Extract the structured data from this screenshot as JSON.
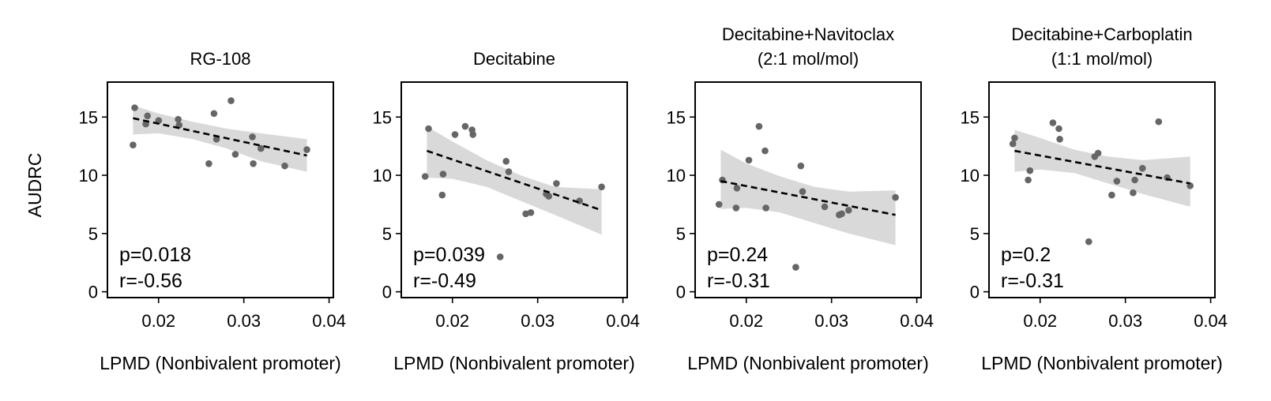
{
  "chart_data": [
    {
      "type": "scatter",
      "title": [
        "RG-108"
      ],
      "xlabel": "LPMD (Nonbivalent promoter)",
      "ylabel": "AUDRC",
      "xlim": [
        0.014,
        0.0405
      ],
      "ylim": [
        -0.5,
        18
      ],
      "xticks": [
        "0.02",
        "0.03",
        "0.04"
      ],
      "yticks": [
        "0",
        "5",
        "10",
        "15"
      ],
      "annotations": [
        "p=0.018",
        "r=-0.56"
      ],
      "points": [
        [
          0.017,
          12.6
        ],
        [
          0.0172,
          15.8
        ],
        [
          0.0185,
          14.4
        ],
        [
          0.0187,
          15.1
        ],
        [
          0.02,
          14.7
        ],
        [
          0.0223,
          14.8
        ],
        [
          0.0224,
          14.3
        ],
        [
          0.0259,
          11.0
        ],
        [
          0.0265,
          15.3
        ],
        [
          0.0268,
          13.1
        ],
        [
          0.0285,
          16.4
        ],
        [
          0.029,
          11.8
        ],
        [
          0.031,
          13.3
        ],
        [
          0.0311,
          11.0
        ],
        [
          0.032,
          12.3
        ],
        [
          0.0348,
          10.8
        ],
        [
          0.0374,
          12.2
        ]
      ],
      "fit": [
        [
          0.017,
          14.9
        ],
        [
          0.0374,
          11.7
        ]
      ],
      "ci_upper": [
        [
          0.017,
          16.0
        ],
        [
          0.02,
          15.3
        ],
        [
          0.024,
          14.6
        ],
        [
          0.028,
          14.0
        ],
        [
          0.032,
          13.6
        ],
        [
          0.0374,
          13.1
        ]
      ],
      "ci_lower": [
        [
          0.017,
          13.5
        ],
        [
          0.02,
          13.6
        ],
        [
          0.024,
          13.1
        ],
        [
          0.028,
          12.3
        ],
        [
          0.032,
          11.2
        ],
        [
          0.0374,
          10.3
        ]
      ],
      "point_color": "#666666",
      "band_color": "#d9d9d9"
    },
    {
      "type": "scatter",
      "title": [
        "Decitabine"
      ],
      "xlabel": "LPMD (Nonbivalent promoter)",
      "ylabel": "",
      "xlim": [
        0.014,
        0.0405
      ],
      "ylim": [
        -0.5,
        18
      ],
      "xticks": [
        "0.02",
        "0.03",
        "0.04"
      ],
      "yticks": [
        "0",
        "5",
        "10",
        "15"
      ],
      "annotations": [
        "p=0.039",
        "r=-0.49"
      ],
      "points": [
        [
          0.0168,
          9.9
        ],
        [
          0.0172,
          14.0
        ],
        [
          0.0188,
          8.3
        ],
        [
          0.0189,
          10.1
        ],
        [
          0.0203,
          13.5
        ],
        [
          0.0215,
          14.2
        ],
        [
          0.0223,
          13.9
        ],
        [
          0.0224,
          13.5
        ],
        [
          0.0256,
          3.0
        ],
        [
          0.0263,
          11.2
        ],
        [
          0.0266,
          10.3
        ],
        [
          0.0286,
          6.7
        ],
        [
          0.0292,
          6.8
        ],
        [
          0.031,
          8.4
        ],
        [
          0.0313,
          8.2
        ],
        [
          0.0322,
          9.3
        ],
        [
          0.0349,
          7.8
        ],
        [
          0.0375,
          9.0
        ]
      ],
      "fit": [
        [
          0.017,
          12.1
        ],
        [
          0.0375,
          7.0
        ]
      ],
      "ci_upper": [
        [
          0.017,
          14.2
        ],
        [
          0.02,
          12.9
        ],
        [
          0.024,
          11.3
        ],
        [
          0.028,
          10.0
        ],
        [
          0.032,
          9.0
        ],
        [
          0.0375,
          8.8
        ]
      ],
      "ci_lower": [
        [
          0.017,
          9.8
        ],
        [
          0.02,
          9.7
        ],
        [
          0.024,
          9.0
        ],
        [
          0.028,
          7.8
        ],
        [
          0.032,
          6.6
        ],
        [
          0.0375,
          4.9
        ]
      ],
      "point_color": "#666666",
      "band_color": "#d9d9d9"
    },
    {
      "type": "scatter",
      "title": [
        "Decitabine+Navitoclax",
        "(2:1 mol/mol)"
      ],
      "xlabel": "LPMD (Nonbivalent promoter)",
      "ylabel": "",
      "xlim": [
        0.014,
        0.0405
      ],
      "ylim": [
        -0.5,
        18
      ],
      "xticks": [
        "0.02",
        "0.03",
        "0.04"
      ],
      "yticks": [
        "0",
        "5",
        "10",
        "15"
      ],
      "annotations": [
        "p=0.24",
        "r=-0.31"
      ],
      "points": [
        [
          0.0168,
          7.5
        ],
        [
          0.0172,
          9.6
        ],
        [
          0.0188,
          7.2
        ],
        [
          0.0189,
          8.9
        ],
        [
          0.0203,
          11.3
        ],
        [
          0.0215,
          14.2
        ],
        [
          0.0222,
          12.1
        ],
        [
          0.0223,
          7.2
        ],
        [
          0.0258,
          2.1
        ],
        [
          0.0264,
          10.8
        ],
        [
          0.0266,
          8.6
        ],
        [
          0.0292,
          7.3
        ],
        [
          0.0309,
          6.6
        ],
        [
          0.0312,
          6.7
        ],
        [
          0.032,
          7.0
        ],
        [
          0.0375,
          8.1
        ]
      ],
      "fit": [
        [
          0.017,
          9.5
        ],
        [
          0.0375,
          6.6
        ]
      ],
      "ci_upper": [
        [
          0.017,
          12.2
        ],
        [
          0.02,
          11.0
        ],
        [
          0.024,
          9.9
        ],
        [
          0.028,
          9.0
        ],
        [
          0.032,
          8.6
        ],
        [
          0.0375,
          8.7
        ]
      ],
      "ci_lower": [
        [
          0.017,
          7.1
        ],
        [
          0.02,
          7.2
        ],
        [
          0.024,
          6.8
        ],
        [
          0.028,
          5.9
        ],
        [
          0.032,
          5.0
        ],
        [
          0.0375,
          4.0
        ]
      ],
      "point_color": "#666666",
      "band_color": "#d9d9d9"
    },
    {
      "type": "scatter",
      "title": [
        "Decitabine+Carboplatin",
        "(1:1 mol/mol)"
      ],
      "xlabel": "LPMD (Nonbivalent promoter)",
      "ylabel": "",
      "xlim": [
        0.014,
        0.0405
      ],
      "ylim": [
        -0.5,
        18
      ],
      "xticks": [
        "0.02",
        "0.03",
        "0.04"
      ],
      "yticks": [
        "0",
        "5",
        "10",
        "15"
      ],
      "annotations": [
        "p=0.2",
        "r=-0.31"
      ],
      "points": [
        [
          0.0168,
          12.7
        ],
        [
          0.017,
          13.2
        ],
        [
          0.0186,
          9.6
        ],
        [
          0.0188,
          10.4
        ],
        [
          0.0215,
          14.5
        ],
        [
          0.0222,
          14.0
        ],
        [
          0.0223,
          13.1
        ],
        [
          0.0257,
          4.3
        ],
        [
          0.0264,
          11.6
        ],
        [
          0.0268,
          11.9
        ],
        [
          0.0284,
          8.3
        ],
        [
          0.029,
          9.5
        ],
        [
          0.0309,
          8.5
        ],
        [
          0.0311,
          9.6
        ],
        [
          0.032,
          10.6
        ],
        [
          0.0339,
          14.6
        ],
        [
          0.0349,
          9.8
        ],
        [
          0.0376,
          9.1
        ]
      ],
      "fit": [
        [
          0.017,
          12.1
        ],
        [
          0.0376,
          9.3
        ]
      ],
      "ci_upper": [
        [
          0.017,
          13.9
        ],
        [
          0.02,
          13.2
        ],
        [
          0.024,
          12.2
        ],
        [
          0.028,
          11.6
        ],
        [
          0.032,
          11.3
        ],
        [
          0.0376,
          11.6
        ]
      ],
      "ci_lower": [
        [
          0.017,
          10.3
        ],
        [
          0.02,
          10.5
        ],
        [
          0.024,
          10.2
        ],
        [
          0.028,
          9.3
        ],
        [
          0.032,
          8.4
        ],
        [
          0.0376,
          7.3
        ]
      ],
      "point_color": "#666666",
      "band_color": "#d9d9d9"
    }
  ]
}
